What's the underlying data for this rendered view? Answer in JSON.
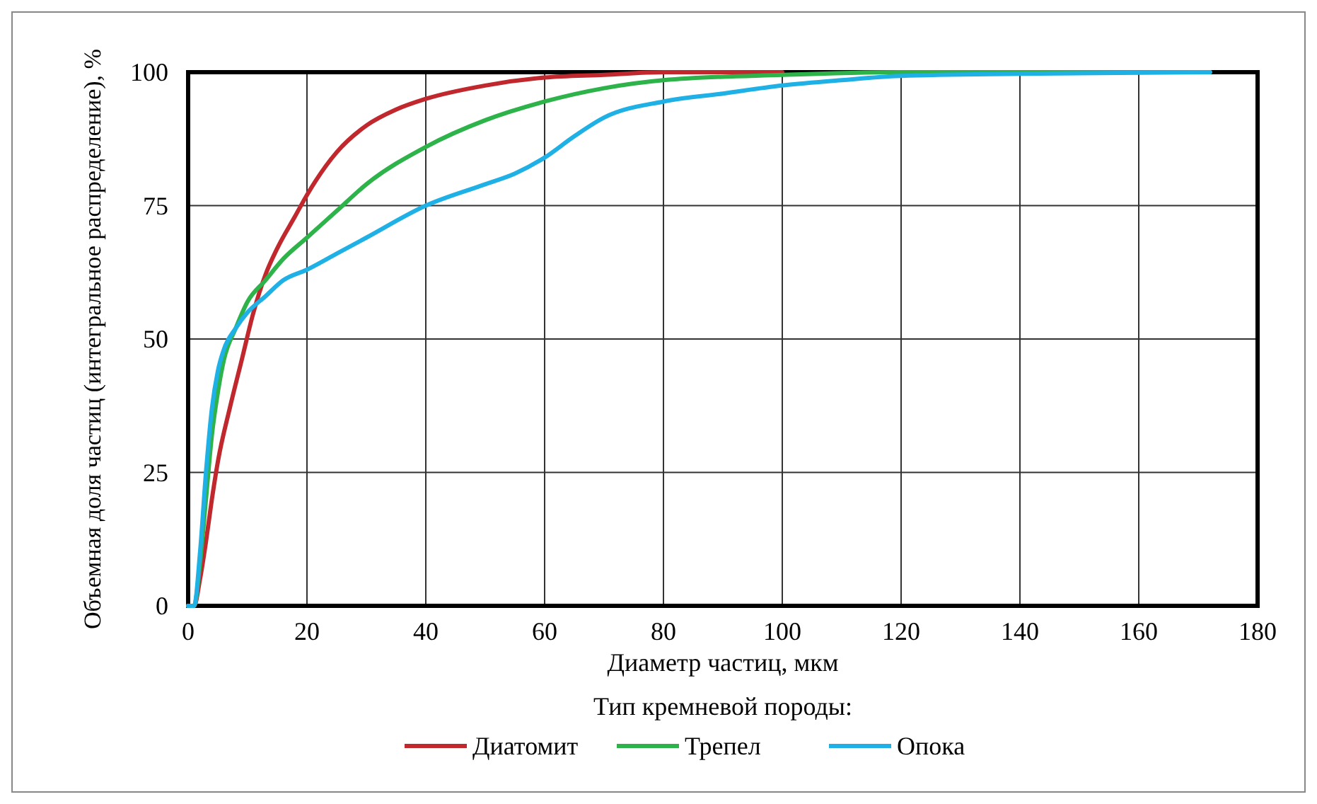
{
  "chart_data": {
    "type": "line",
    "xlabel": "Диаметр частиц, мкм",
    "ylabel": "Объемная доля частиц (интегральное распределение), %",
    "legend_title": "Тип кремневой породы:",
    "legend": "bottom",
    "grid": true,
    "marker": "none",
    "line_style": "solid",
    "xlim": [
      0,
      180
    ],
    "xticks": [
      0,
      20,
      40,
      60,
      80,
      100,
      120,
      140,
      160,
      180
    ],
    "ylim": [
      0,
      100
    ],
    "yticks": [
      0,
      25,
      50,
      75,
      100
    ],
    "series": [
      {
        "name": "Диатомит",
        "color": "#c0282d",
        "x": [
          0,
          1,
          2,
          3,
          4,
          5,
          7,
          9,
          11,
          13,
          15,
          18,
          20,
          25,
          30,
          35,
          40,
          50,
          60,
          70,
          80,
          100
        ],
        "values": [
          0,
          0,
          5,
          12,
          20,
          27,
          37,
          46,
          55,
          62,
          67,
          73,
          77,
          85,
          90,
          93,
          95,
          97.5,
          99,
          99.5,
          100,
          100
        ]
      },
      {
        "name": "Трепел",
        "color": "#2db34a",
        "x": [
          0,
          1,
          2,
          3,
          4,
          5,
          6,
          8,
          10,
          13,
          16,
          20,
          25,
          30,
          40,
          50,
          60,
          70,
          80,
          100,
          120,
          172
        ],
        "values": [
          0,
          0,
          8,
          20,
          32,
          40,
          46,
          52,
          57,
          61,
          65,
          69,
          74,
          79,
          86,
          91,
          94.5,
          97,
          98.5,
          99.5,
          100,
          100
        ]
      },
      {
        "name": "Опока",
        "color": "#1fb0e6",
        "x": [
          0,
          1,
          2,
          3,
          4,
          5,
          6,
          8,
          10,
          13,
          16,
          20,
          25,
          30,
          40,
          50,
          55,
          60,
          65,
          70,
          80,
          90,
          100,
          110,
          120,
          140,
          172
        ],
        "values": [
          0,
          0,
          10,
          25,
          37,
          44,
          48,
          52,
          55,
          58,
          61,
          63,
          66,
          69,
          75,
          79,
          81,
          84,
          88,
          91.5,
          94.5,
          96,
          97.5,
          98.5,
          99.3,
          99.7,
          100
        ]
      }
    ]
  }
}
